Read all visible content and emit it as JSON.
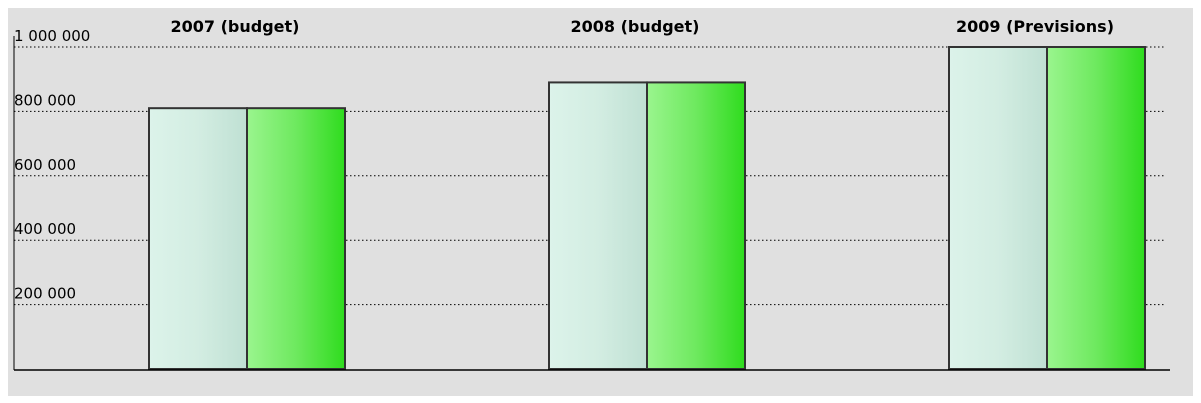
{
  "chart_data": {
    "type": "bar",
    "categories": [
      "2007 (budget)",
      "2008 (budget)",
      "2009 (Previsions)"
    ],
    "series": [
      {
        "values": [
          810000,
          890000,
          1000000
        ],
        "color": "#c6e8dc"
      },
      {
        "values": [
          810000,
          890000,
          1000000
        ],
        "color": "#3ddf2a"
      }
    ],
    "yticks": [
      "200 000",
      "400 000",
      "600 000",
      "800 000",
      "1 000 000"
    ],
    "ytick_values": [
      200000,
      400000,
      600000,
      800000,
      1000000
    ],
    "ylim": [
      0,
      1000000
    ],
    "grid": "dotted horizontal",
    "background": "#e0e0e0"
  }
}
